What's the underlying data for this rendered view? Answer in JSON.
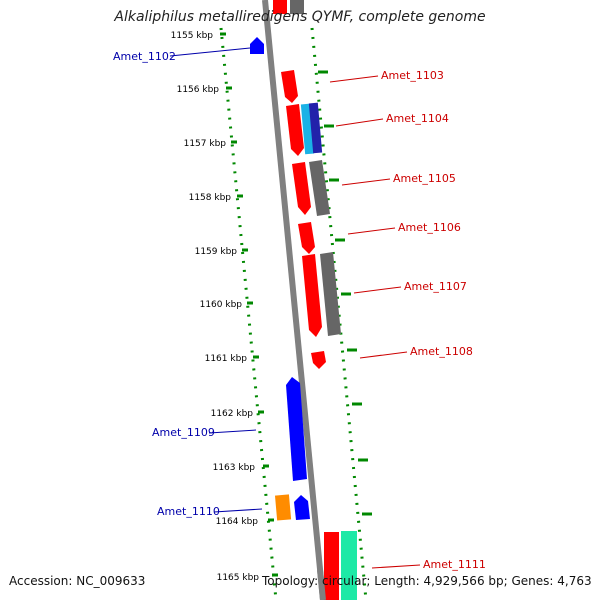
{
  "title": "Alkaliphilus metalliredigens QYMF, complete genome",
  "footer": {
    "accession": "Accession: NC_009633",
    "summary": "Topology: circular; Length: 4,929,566 bp; Genes: 4,763"
  },
  "colors": {
    "red": "#ff0000",
    "blue": "#0000ff",
    "grey": "#666666",
    "cyan": "#1ab2e6",
    "navy": "#2222aa",
    "orange": "#ff8c00",
    "green": "#1de9a6",
    "scale": "#008800",
    "label_forward": "#cc0000",
    "label_reverse": "#0000aa"
  },
  "scale_ticks": [
    "1155 kbp",
    "1156 kbp",
    "1157 kbp",
    "1158 kbp",
    "1159 kbp",
    "1160 kbp",
    "1161 kbp",
    "1162 kbp",
    "1163 kbp",
    "1164 kbp",
    "1165 kbp"
  ],
  "gene_labels": {
    "forward": [
      "Amet_1103",
      "Amet_1104",
      "Amet_1105",
      "Amet_1106",
      "Amet_1107",
      "Amet_1108",
      "Amet_1111"
    ],
    "reverse": [
      "Amet_1102",
      "Amet_1109",
      "Amet_1110"
    ]
  }
}
